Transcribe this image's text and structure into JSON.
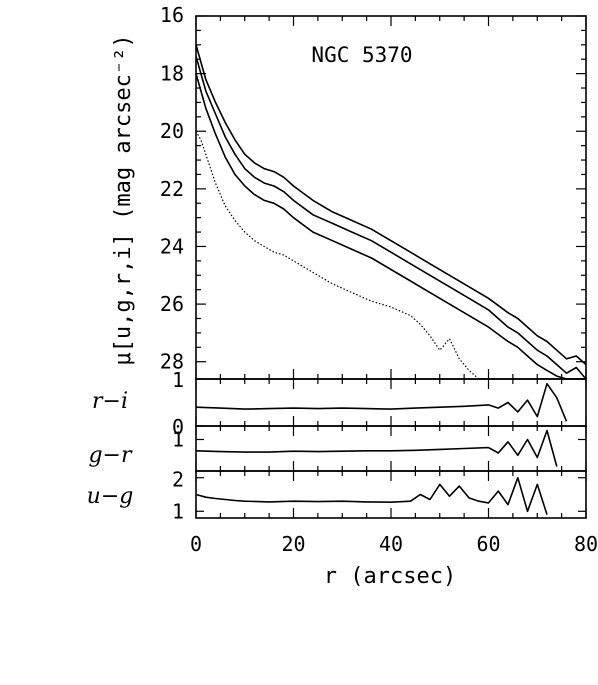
{
  "chart_data": {
    "type": "line",
    "title": "NGC 5370",
    "xlabel": "r  (arcsec)",
    "xlim": [
      0,
      80
    ],
    "x_ticks": [
      "0",
      "20",
      "40",
      "60",
      "80"
    ],
    "panels": [
      {
        "name": "main",
        "ylabel": "μ[u,g,r,i]  (mag arcsec⁻²)",
        "ylim": [
          28.6,
          16
        ],
        "y_ticks": [
          "16",
          "18",
          "20",
          "22",
          "24",
          "26",
          "28"
        ],
        "series": [
          {
            "style": "solid",
            "x": [
              0,
              1,
              2,
              4,
              6,
              8,
              10,
              12,
              14,
              16,
              18,
              20,
              24,
              28,
              32,
              36,
              40,
              44,
              48,
              52,
              56,
              60,
              64,
              66,
              68,
              70,
              72,
              74,
              76,
              78,
              80
            ],
            "y": [
              17.0,
              17.6,
              18.2,
              19.0,
              19.7,
              20.3,
              20.8,
              21.1,
              21.3,
              21.4,
              21.6,
              21.9,
              22.4,
              22.8,
              23.1,
              23.4,
              23.8,
              24.2,
              24.6,
              25.0,
              25.4,
              25.8,
              26.3,
              26.5,
              26.8,
              27.1,
              27.3,
              27.6,
              27.9,
              27.8,
              28.1
            ]
          },
          {
            "style": "solid",
            "x": [
              0,
              1,
              2,
              4,
              6,
              8,
              10,
              12,
              14,
              16,
              18,
              20,
              24,
              28,
              32,
              36,
              40,
              44,
              48,
              52,
              56,
              60,
              64,
              66,
              68,
              70,
              72,
              74,
              76,
              78,
              80
            ],
            "y": [
              17.4,
              18.0,
              18.6,
              19.4,
              20.2,
              20.8,
              21.3,
              21.6,
              21.8,
              21.9,
              22.1,
              22.4,
              22.9,
              23.2,
              23.5,
              23.8,
              24.2,
              24.6,
              25.0,
              25.4,
              25.8,
              26.2,
              26.8,
              27.0,
              27.3,
              27.6,
              27.8,
              28.1,
              28.4,
              28.2,
              28.6
            ]
          },
          {
            "style": "solid",
            "x": [
              0,
              1,
              2,
              4,
              6,
              8,
              10,
              12,
              14,
              16,
              18,
              20,
              24,
              28,
              32,
              36,
              40,
              44,
              48,
              52,
              56,
              60,
              64,
              66,
              68,
              70,
              72,
              74,
              76,
              78,
              80
            ],
            "y": [
              18.0,
              18.6,
              19.2,
              20.1,
              20.9,
              21.5,
              21.9,
              22.2,
              22.4,
              22.5,
              22.7,
              23.0,
              23.5,
              23.8,
              24.1,
              24.4,
              24.8,
              25.2,
              25.6,
              26.0,
              26.4,
              26.8,
              27.3,
              27.5,
              27.8,
              28.1,
              28.3,
              28.5,
              28.6,
              28.6,
              28.6
            ]
          },
          {
            "style": "dotted",
            "x": [
              0,
              1,
              2,
              3,
              4,
              6,
              8,
              10,
              12,
              14,
              16,
              18,
              20,
              24,
              28,
              32,
              36,
              40,
              44,
              46,
              48,
              50,
              52,
              54,
              56,
              58,
              60
            ],
            "y": [
              20.0,
              20.3,
              20.8,
              21.3,
              21.8,
              22.6,
              23.1,
              23.5,
              23.8,
              24.0,
              24.2,
              24.3,
              24.5,
              24.9,
              25.3,
              25.6,
              25.9,
              26.1,
              26.4,
              26.7,
              27.1,
              27.6,
              27.2,
              27.9,
              28.3,
              28.6,
              28.6
            ]
          }
        ]
      },
      {
        "name": "r-i",
        "ylabel": "r−i",
        "ylim": [
          0,
          1
        ],
        "y_ticks": [
          "1",
          "0"
        ],
        "series": [
          {
            "style": "solid",
            "x": [
              0,
              5,
              10,
              15,
              20,
              25,
              30,
              35,
              40,
              45,
              50,
              55,
              60,
              62,
              64,
              66,
              68,
              70,
              72,
              74,
              76
            ],
            "y": [
              0.4,
              0.38,
              0.36,
              0.37,
              0.38,
              0.37,
              0.38,
              0.37,
              0.36,
              0.38,
              0.4,
              0.42,
              0.45,
              0.38,
              0.5,
              0.3,
              0.55,
              0.2,
              0.9,
              0.6,
              0.1
            ]
          }
        ]
      },
      {
        "name": "g-r",
        "ylabel": "g−r",
        "ylim": [
          0.3,
          1.3
        ],
        "y_ticks": [
          "1"
        ],
        "series": [
          {
            "style": "solid",
            "x": [
              0,
              5,
              10,
              15,
              20,
              25,
              30,
              35,
              40,
              45,
              50,
              55,
              60,
              62,
              64,
              66,
              68,
              70,
              72,
              74
            ],
            "y": [
              0.75,
              0.73,
              0.72,
              0.72,
              0.74,
              0.73,
              0.74,
              0.75,
              0.75,
              0.76,
              0.78,
              0.8,
              0.82,
              0.7,
              0.95,
              0.65,
              1.0,
              0.6,
              1.2,
              0.4
            ]
          }
        ]
      },
      {
        "name": "u-g",
        "ylabel": "u−g",
        "ylim": [
          0.8,
          2.2
        ],
        "y_ticks": [
          "2",
          "1"
        ],
        "series": [
          {
            "style": "solid",
            "x": [
              0,
              2,
              4,
              6,
              8,
              10,
              15,
              20,
              25,
              30,
              35,
              40,
              44,
              46,
              48,
              50,
              52,
              54,
              56,
              58,
              60,
              62,
              64,
              66,
              68,
              70,
              72
            ],
            "y": [
              1.5,
              1.42,
              1.38,
              1.35,
              1.32,
              1.3,
              1.28,
              1.3,
              1.29,
              1.3,
              1.28,
              1.27,
              1.3,
              1.5,
              1.35,
              1.8,
              1.45,
              1.75,
              1.4,
              1.3,
              1.25,
              1.6,
              1.2,
              2.0,
              1.0,
              1.8,
              0.9
            ]
          }
        ]
      }
    ]
  }
}
